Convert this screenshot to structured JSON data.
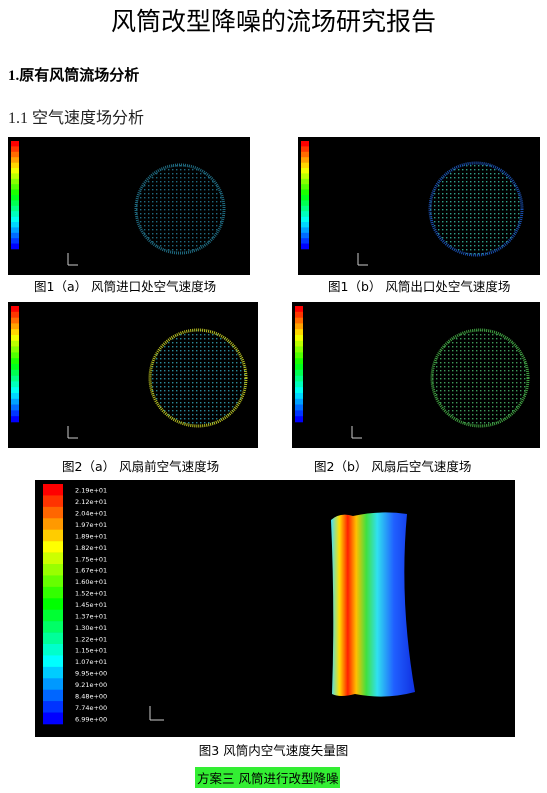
{
  "title": "风筒改型降噪的流场研究报告",
  "heading1": "1.原有风筒流场分析",
  "heading2": "1.1 空气速度场分析",
  "figures": [
    {
      "caption": "图1（a） 风筒进口处空气速度场"
    },
    {
      "caption": "图1（b） 风筒出口处空气速度场"
    },
    {
      "caption": "图2（a） 风扇前空气速度场"
    },
    {
      "caption": "图2（b） 风扇后空气速度场"
    }
  ],
  "figure3": {
    "caption": "图3 风筒内空气速度矢量图",
    "colorbar_labels": [
      "2.19e+01",
      "2.12e+01",
      "2.04e+01",
      "1.97e+01",
      "1.89e+01",
      "1.82e+01",
      "1.75e+01",
      "1.67e+01",
      "1.60e+01",
      "1.52e+01",
      "1.45e+01",
      "1.37e+01",
      "1.30e+01",
      "1.22e+01",
      "1.15e+01",
      "1.07e+01",
      "9.95e+00",
      "9.21e+00",
      "8.48e+00",
      "7.74e+00",
      "6.99e+00"
    ]
  },
  "scheme": "方案三 风筒进行改型降噪"
}
